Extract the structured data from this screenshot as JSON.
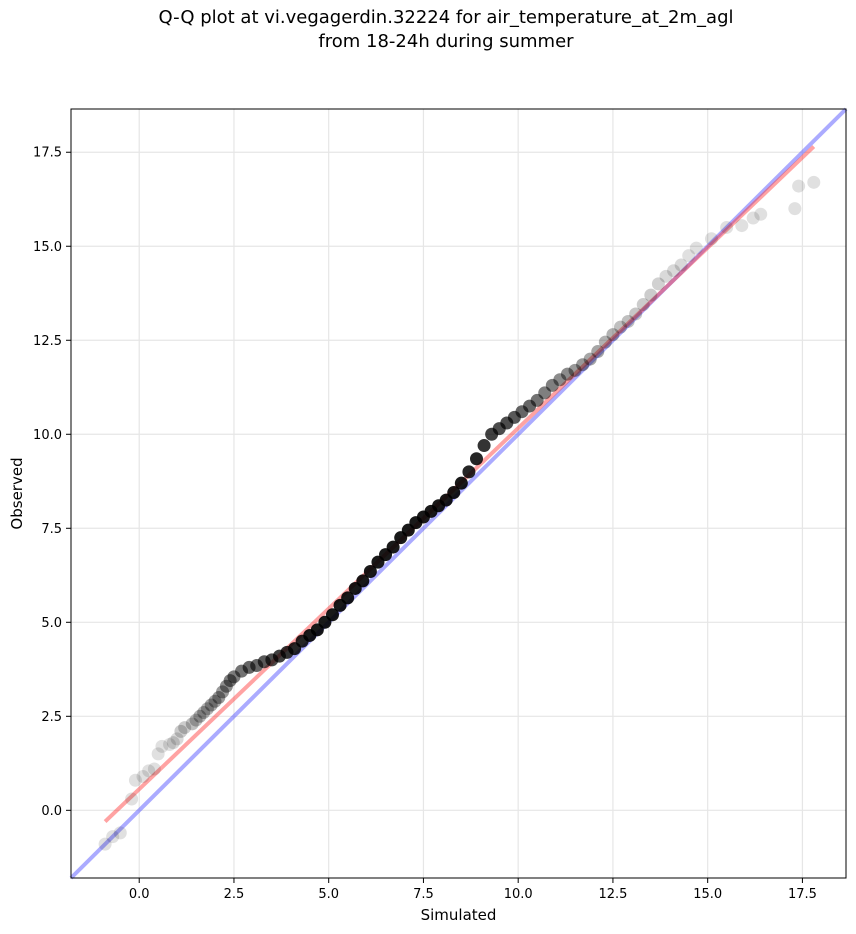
{
  "chart_data": {
    "type": "scatter",
    "title": "Q-Q plot at vi.vegagerdin.32224 for air_temperature_at_2m_agl",
    "subtitle": "from 18-24h during summer",
    "xlabel": "Simulated",
    "ylabel": "Observed",
    "xlim": [
      -1.8,
      18.65
    ],
    "ylim": [
      -1.8,
      18.65
    ],
    "xticks": [
      "0.0",
      "2.5",
      "5.0",
      "7.5",
      "10.0",
      "12.5",
      "15.0",
      "17.5"
    ],
    "yticks": [
      "0.0",
      "2.5",
      "5.0",
      "7.5",
      "10.0",
      "12.5",
      "15.0",
      "17.5"
    ],
    "xtick_values": [
      0,
      2.5,
      5,
      7.5,
      10,
      12.5,
      15,
      17.5
    ],
    "ytick_values": [
      0,
      2.5,
      5,
      7.5,
      10,
      12.5,
      15,
      17.5
    ],
    "grid": true,
    "reference_line": {
      "name": "",
      "color": "#4444ff",
      "from": [
        -1.8,
        -1.8
      ],
      "to": [
        18.65,
        18.65
      ]
    },
    "fit_line": {
      "name": "",
      "color": "#ff3333",
      "from": [
        -0.9,
        -0.3
      ],
      "to": [
        17.8,
        17.65
      ]
    },
    "points": {
      "color": "#000000",
      "x": [
        -0.9,
        -0.7,
        -0.5,
        -0.2,
        -0.1,
        0.1,
        0.25,
        0.4,
        0.5,
        0.6,
        0.8,
        0.9,
        1.0,
        1.1,
        1.2,
        1.4,
        1.5,
        1.6,
        1.7,
        1.8,
        1.9,
        2.0,
        2.1,
        2.2,
        2.3,
        2.4,
        2.5,
        2.7,
        2.9,
        3.1,
        3.3,
        3.5,
        3.7,
        3.9,
        4.1,
        4.3,
        4.5,
        4.7,
        4.9,
        5.1,
        5.3,
        5.5,
        5.7,
        5.9,
        6.1,
        6.3,
        6.5,
        6.7,
        6.9,
        7.1,
        7.3,
        7.5,
        7.7,
        7.9,
        8.1,
        8.3,
        8.5,
        8.7,
        8.9,
        9.1,
        9.3,
        9.5,
        9.7,
        9.9,
        10.1,
        10.3,
        10.5,
        10.7,
        10.9,
        11.1,
        11.3,
        11.5,
        11.7,
        11.9,
        12.1,
        12.3,
        12.5,
        12.7,
        12.9,
        13.1,
        13.3,
        13.5,
        13.7,
        13.9,
        14.1,
        14.3,
        14.5,
        14.7,
        15.1,
        15.5,
        15.9,
        16.2,
        16.4,
        17.3,
        17.4,
        17.8
      ],
      "y": [
        -0.9,
        -0.7,
        -0.6,
        0.3,
        0.8,
        0.9,
        1.05,
        1.1,
        1.5,
        1.7,
        1.75,
        1.8,
        1.9,
        2.1,
        2.2,
        2.3,
        2.4,
        2.5,
        2.6,
        2.7,
        2.8,
        2.9,
        3.0,
        3.15,
        3.3,
        3.45,
        3.55,
        3.7,
        3.8,
        3.85,
        3.95,
        4.0,
        4.1,
        4.2,
        4.3,
        4.5,
        4.65,
        4.8,
        5.0,
        5.2,
        5.45,
        5.65,
        5.9,
        6.1,
        6.35,
        6.6,
        6.8,
        7.0,
        7.25,
        7.45,
        7.65,
        7.8,
        7.95,
        8.1,
        8.25,
        8.45,
        8.7,
        9.0,
        9.35,
        9.7,
        10.0,
        10.15,
        10.3,
        10.45,
        10.6,
        10.75,
        10.9,
        11.1,
        11.3,
        11.45,
        11.6,
        11.7,
        11.85,
        12.0,
        12.2,
        12.45,
        12.65,
        12.85,
        13.0,
        13.2,
        13.45,
        13.7,
        14.0,
        14.2,
        14.35,
        14.5,
        14.75,
        14.95,
        15.2,
        15.5,
        15.55,
        15.75,
        15.85,
        16.0,
        16.6,
        16.7
      ],
      "alpha": [
        0.12,
        0.12,
        0.12,
        0.12,
        0.12,
        0.12,
        0.12,
        0.12,
        0.12,
        0.12,
        0.12,
        0.15,
        0.15,
        0.2,
        0.2,
        0.25,
        0.25,
        0.3,
        0.3,
        0.3,
        0.35,
        0.35,
        0.4,
        0.4,
        0.45,
        0.5,
        0.5,
        0.55,
        0.6,
        0.6,
        0.65,
        0.7,
        0.75,
        0.8,
        0.85,
        0.85,
        0.9,
        0.9,
        0.9,
        0.9,
        0.9,
        0.9,
        0.9,
        0.9,
        0.9,
        0.9,
        0.9,
        0.9,
        0.9,
        0.9,
        0.9,
        0.9,
        0.9,
        0.9,
        0.9,
        0.9,
        0.9,
        0.85,
        0.85,
        0.8,
        0.75,
        0.7,
        0.7,
        0.65,
        0.6,
        0.6,
        0.55,
        0.5,
        0.5,
        0.45,
        0.45,
        0.4,
        0.4,
        0.35,
        0.35,
        0.3,
        0.3,
        0.25,
        0.25,
        0.22,
        0.2,
        0.2,
        0.18,
        0.15,
        0.15,
        0.15,
        0.12,
        0.12,
        0.12,
        0.12,
        0.12,
        0.12,
        0.12,
        0.12,
        0.12,
        0.12
      ]
    }
  }
}
